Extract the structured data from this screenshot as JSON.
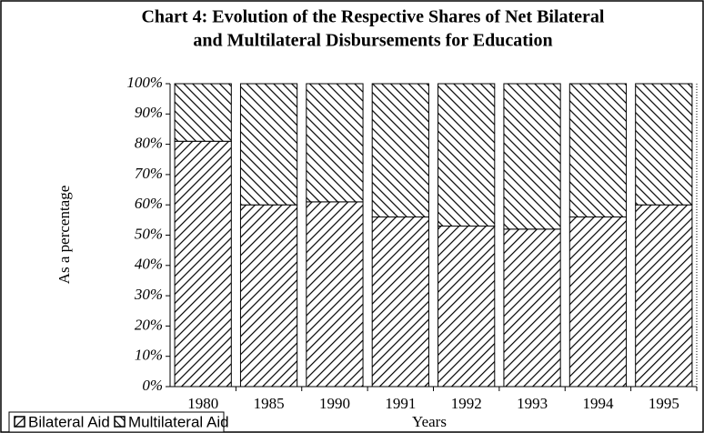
{
  "chart_data": {
    "type": "stacked_bar",
    "title": [
      "Chart 4: Evolution of the Respective Shares of Net Bilateral",
      "and Multilateral Disbursements for Education"
    ],
    "y_label": "As a percentage",
    "x_label": "Years",
    "categories": [
      "1980",
      "1985",
      "1990",
      "1991",
      "1992",
      "1993",
      "1994",
      "1995"
    ],
    "series": [
      {
        "name": "Bilateral Aid",
        "color": "#000000",
        "values": [
          81,
          60,
          61,
          56,
          53,
          52,
          56,
          60
        ]
      },
      {
        "name": "Multilateral Aid",
        "color": "#000000",
        "values": [
          19,
          40,
          39,
          44,
          47,
          48,
          44,
          40
        ]
      }
    ],
    "ylim": [
      0,
      100
    ],
    "yticks": [
      {
        "value": 0,
        "label": "0%"
      },
      {
        "value": 10,
        "label": "10%"
      },
      {
        "value": 20,
        "label": "20%"
      },
      {
        "value": 30,
        "label": "30%"
      },
      {
        "value": 40,
        "label": "40%"
      },
      {
        "value": 50,
        "label": "50%"
      },
      {
        "value": 60,
        "label": "60%"
      },
      {
        "value": 70,
        "label": "70%"
      },
      {
        "value": 80,
        "label": "80%"
      },
      {
        "value": 90,
        "label": "90%"
      },
      {
        "value": 100,
        "label": "100%"
      }
    ],
    "legend": "bottom-left"
  }
}
